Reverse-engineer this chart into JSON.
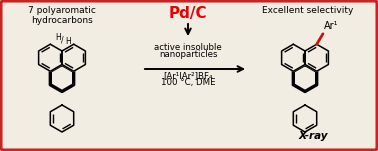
{
  "bg_color": "#f2ede3",
  "border_color": "#cc2222",
  "border_lw": 2.2,
  "title_left": "7 polyaromatic\nhydrocarbons",
  "title_right": "Excellent selectivity",
  "catalyst": "Pd/C",
  "catalyst_color": "#ee0000",
  "middle_text_line1": "active insoluble",
  "middle_text_line2": "nanoparticles",
  "middle_text_line3": "[Ar¹IAr²]BF₄",
  "middle_text_line4": "100 °C, DME",
  "label_xray": "X-ray",
  "lw_thin": 1.1,
  "lw_thick": 2.4,
  "lw_double": 1.0,
  "mol_r": 13.5
}
